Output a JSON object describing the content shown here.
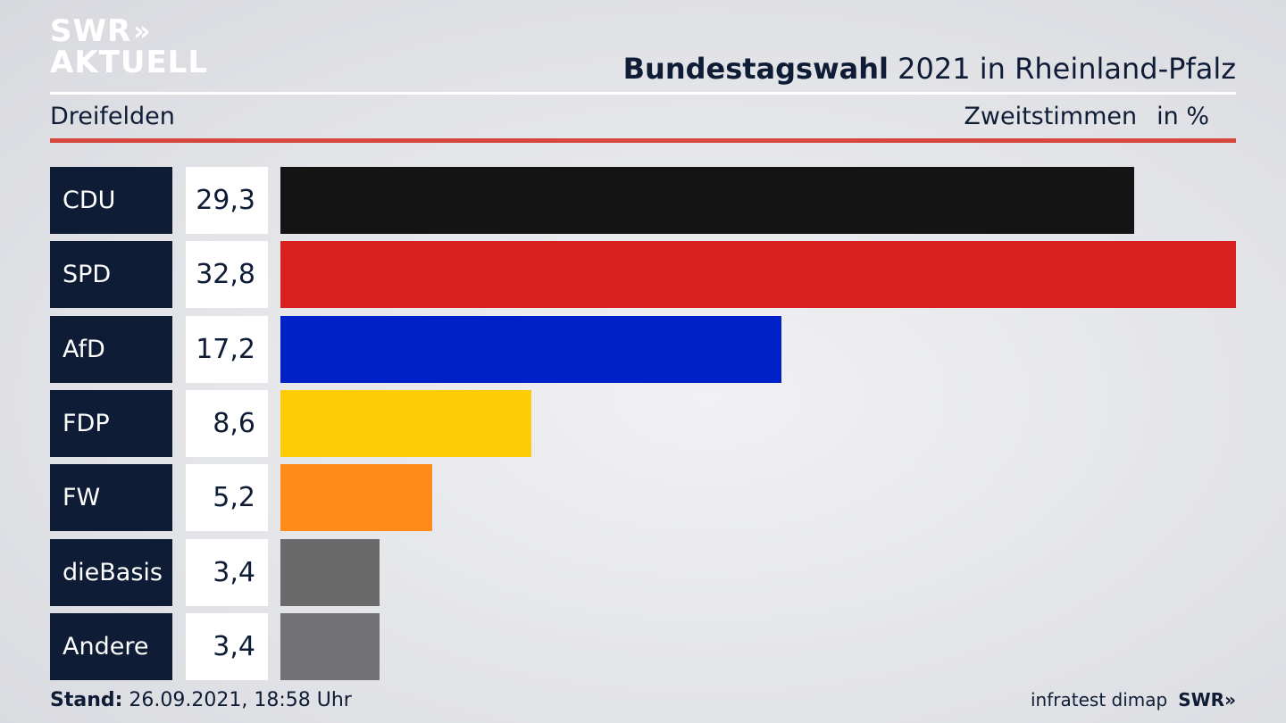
{
  "brand": {
    "logo_line1": "SWR",
    "logo_chevrons": "»",
    "logo_line2": "AKTUELL"
  },
  "header": {
    "title_bold": "Bundestagswahl",
    "title_rest": "2021 in Rheinland-Pfalz",
    "subtitle": "Dreifelden",
    "measure": "Zweitstimmen",
    "unit": "in %"
  },
  "colors": {
    "navy": "#0f1c36",
    "accent_red": "#d8473d"
  },
  "chart_data": {
    "type": "bar",
    "orientation": "horizontal",
    "categories": [
      "CDU",
      "SPD",
      "AfD",
      "FDP",
      "FW",
      "dieBasis",
      "Andere"
    ],
    "value_labels": [
      "29,3",
      "32,8",
      "17,2",
      "8,6",
      "5,2",
      "3,4",
      "3,4"
    ],
    "values": [
      29.3,
      32.8,
      17.2,
      8.6,
      5.2,
      3.4,
      3.4
    ],
    "colors": [
      "#141414",
      "#d82020",
      "#0021c8",
      "#ffcc0a",
      "#ff8c1a",
      "#6a6a6a",
      "#727274"
    ],
    "xlim": [
      0,
      32.8
    ]
  },
  "footer": {
    "stand_label": "Stand:",
    "stand_value": "26.09.2021, 18:58 Uhr",
    "source": "infratest dimap",
    "source_logo": "SWR»"
  }
}
